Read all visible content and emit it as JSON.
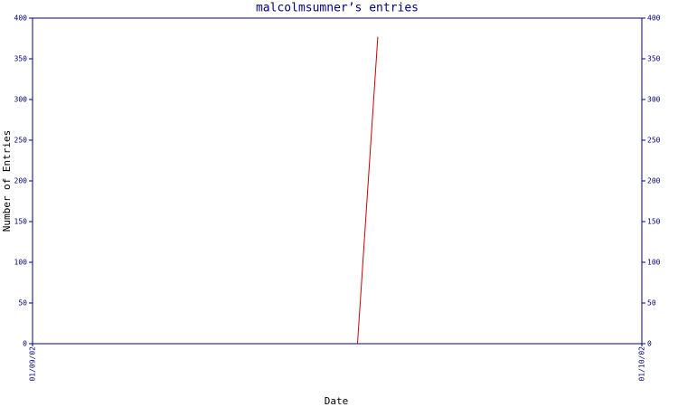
{
  "chart_data": {
    "type": "line",
    "title": "malcolmsumner’s entries",
    "x_label": "Date",
    "y_label": "Number of Entries",
    "x": [
      16,
      17
    ],
    "series": [
      {
        "color": "#cc0000",
        "values": [
          0,
          377
        ]
      }
    ],
    "xlim": [
      0,
      30
    ],
    "xticks": [
      {
        "value": 0,
        "label": "01/09/02"
      },
      {
        "value": 30,
        "label": "01/10/02"
      }
    ],
    "ylim": [
      0,
      400
    ],
    "yticks": [
      0,
      50,
      100,
      150,
      200,
      250,
      300,
      350,
      400
    ],
    "y2lim": [
      0,
      400
    ],
    "y2ticks": [
      0,
      50,
      100,
      150,
      200,
      250,
      300,
      350,
      400
    ],
    "axis_color": "#000080"
  }
}
